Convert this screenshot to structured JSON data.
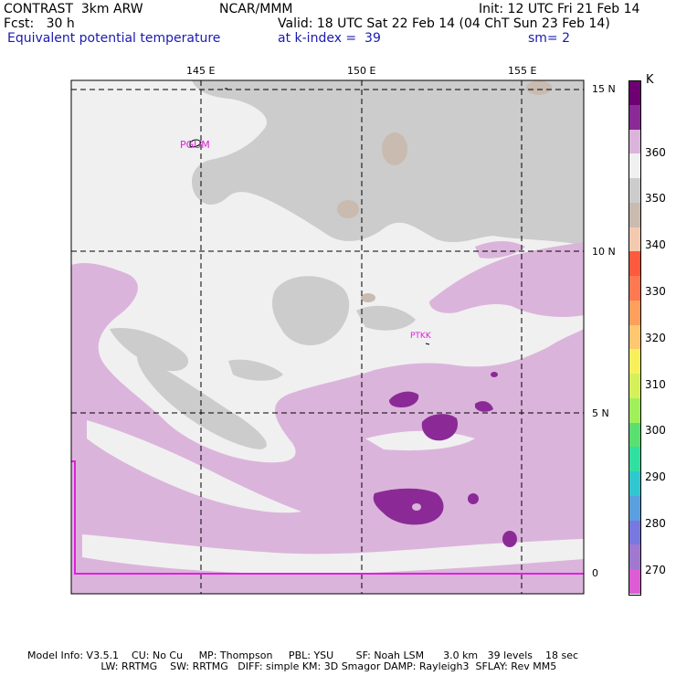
{
  "header": {
    "model": "CONTRAST  3km ARW",
    "org": "NCAR/MMM",
    "init": "Init: 12 UTC Fri 21 Feb 14",
    "fcst": "Fcst:   30 h",
    "valid": "Valid: 18 UTC Sat 22 Feb 14 (04 ChT Sun 23 Feb 14)",
    "field": "Equivalent potential temperature",
    "level": "at k-index =  39",
    "smooth": "sm= 2"
  },
  "map": {
    "lon_labels": [
      "145 E",
      "150 E",
      "155 E"
    ],
    "lat_labels": [
      "15 N",
      "10 N",
      "5 N",
      "0"
    ],
    "stations": [
      "PGUM",
      "PTKK"
    ]
  },
  "colorbar": {
    "unit": "K",
    "labels": [
      "360",
      "350",
      "340",
      "330",
      "320",
      "310",
      "300",
      "290",
      "280",
      "270"
    ],
    "colors": [
      "#6e0073",
      "#8b2a97",
      "#dbb4db",
      "#f0f0f0",
      "#cccccc",
      "#c9bbb0",
      "#f3c9b0",
      "#ff5a3c",
      "#ff7950",
      "#ff9f5c",
      "#ffc870",
      "#f8f05a",
      "#d6f05a",
      "#a0f05a",
      "#5ae070",
      "#30e0a0",
      "#30c8d0",
      "#5aa0e0",
      "#7878e0",
      "#a078d0",
      "#dd5cd5"
    ]
  },
  "footer": {
    "line1": "Model Info: V3.5.1    CU: No Cu     MP: Thompson     PBL: YSU       SF: Noah LSM      3.0 km   39 levels    18 sec",
    "line2": "                       LW: RRTMG    SW: RRTMG   DIFF: simple KM: 3D Smagor DAMP: Rayleigh3  SFLAY: Rev MM5"
  }
}
